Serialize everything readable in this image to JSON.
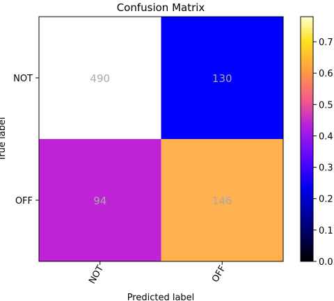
{
  "chart_data": {
    "type": "heatmap",
    "title": "Confusion Matrix",
    "xlabel": "Predicted label",
    "ylabel": "True label",
    "x_categories": [
      "NOT",
      "OFF"
    ],
    "y_categories": [
      "NOT",
      "OFF"
    ],
    "values": [
      [
        490,
        130
      ],
      [
        94,
        146
      ]
    ],
    "cell_colors": [
      [
        "#ffffff",
        "#0000ff"
      ],
      [
        "#bf23d6",
        "#ffb150"
      ]
    ],
    "value_text_color": "#aaaaaa",
    "colormap": "gnuplot2",
    "colorbar": {
      "range": [
        0.0,
        0.78
      ],
      "ticks": [
        0.0,
        0.1,
        0.2,
        0.3,
        0.4,
        0.5,
        0.6,
        0.7
      ],
      "tick_labels": [
        "0.0",
        "0.1",
        "0.2",
        "0.3",
        "0.4",
        "0.5",
        "0.6",
        "0.7"
      ]
    }
  }
}
